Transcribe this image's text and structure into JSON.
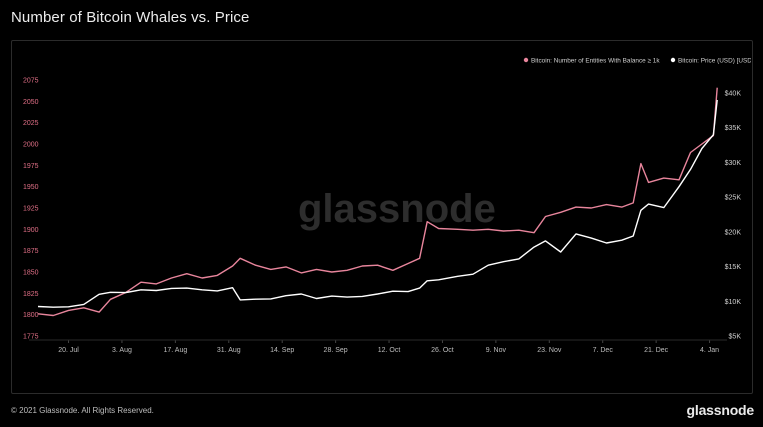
{
  "header": {
    "title": "Number of Bitcoin Whales vs. Price"
  },
  "footer": {
    "copyright": "© 2021 Glassnode. All Rights Reserved.",
    "brand": "glassnode"
  },
  "watermark": "glassnode",
  "colors": {
    "whales": "#e8859c",
    "price": "#ffffff",
    "left_axis": "#e06f86",
    "background": "#000000"
  },
  "chart_data": {
    "type": "line",
    "title": "Number of Bitcoin Whales vs. Price",
    "legend_position": "top-right",
    "x_ticks": [
      "20. Jul",
      "3. Aug",
      "17. Aug",
      "31. Aug",
      "14. Sep",
      "28. Sep",
      "12. Oct",
      "26. Oct",
      "9. Nov",
      "23. Nov",
      "7. Dec",
      "21. Dec",
      "4. Jan"
    ],
    "x_range": [
      "2020-07-12",
      "2021-01-07"
    ],
    "y_left": {
      "ticks": [
        "1775",
        "1800",
        "1825",
        "1850",
        "1875",
        "1900",
        "1925",
        "1950",
        "1975",
        "2000",
        "2025",
        "2050",
        "2075"
      ],
      "range": [
        1775,
        2075
      ]
    },
    "y_right": {
      "ticks": [
        "$5K",
        "$10K",
        "$15K",
        "$20K",
        "$25K",
        "$30K",
        "$35K",
        "$40K"
      ],
      "range": [
        5000,
        40000
      ]
    },
    "series": [
      {
        "name": "Bitcoin: Number of Entities With Balance ≥ 1k",
        "axis": "left",
        "points": [
          [
            "2020-07-12",
            1801
          ],
          [
            "2020-07-16",
            1799
          ],
          [
            "2020-07-20",
            1805
          ],
          [
            "2020-07-24",
            1808
          ],
          [
            "2020-07-28",
            1803
          ],
          [
            "2020-07-31",
            1818
          ],
          [
            "2020-08-04",
            1826
          ],
          [
            "2020-08-08",
            1838
          ],
          [
            "2020-08-12",
            1836
          ],
          [
            "2020-08-16",
            1843
          ],
          [
            "2020-08-20",
            1848
          ],
          [
            "2020-08-24",
            1843
          ],
          [
            "2020-08-28",
            1846
          ],
          [
            "2020-09-01",
            1857
          ],
          [
            "2020-09-03",
            1866
          ],
          [
            "2020-09-07",
            1858
          ],
          [
            "2020-09-11",
            1853
          ],
          [
            "2020-09-15",
            1856
          ],
          [
            "2020-09-19",
            1849
          ],
          [
            "2020-09-23",
            1853
          ],
          [
            "2020-09-27",
            1850
          ],
          [
            "2020-10-01",
            1852
          ],
          [
            "2020-10-05",
            1857
          ],
          [
            "2020-10-09",
            1858
          ],
          [
            "2020-10-13",
            1852
          ],
          [
            "2020-10-17",
            1860
          ],
          [
            "2020-10-20",
            1866
          ],
          [
            "2020-10-22",
            1909
          ],
          [
            "2020-10-25",
            1901
          ],
          [
            "2020-10-30",
            1900
          ],
          [
            "2020-11-03",
            1899
          ],
          [
            "2020-11-07",
            1900
          ],
          [
            "2020-11-11",
            1898
          ],
          [
            "2020-11-15",
            1899
          ],
          [
            "2020-11-19",
            1896
          ],
          [
            "2020-11-22",
            1915
          ],
          [
            "2020-11-26",
            1920
          ],
          [
            "2020-11-30",
            1926
          ],
          [
            "2020-12-04",
            1925
          ],
          [
            "2020-12-08",
            1929
          ],
          [
            "2020-12-12",
            1926
          ],
          [
            "2020-12-15",
            1931
          ],
          [
            "2020-12-17",
            1977
          ],
          [
            "2020-12-19",
            1955
          ],
          [
            "2020-12-23",
            1960
          ],
          [
            "2020-12-27",
            1958
          ],
          [
            "2020-12-30",
            1990
          ],
          [
            "2021-01-02",
            2000
          ],
          [
            "2021-01-05",
            2010
          ],
          [
            "2021-01-06",
            2066
          ]
        ]
      },
      {
        "name": "Bitcoin: Price (USD) [USD]",
        "axis": "right",
        "points": [
          [
            "2020-07-12",
            9250
          ],
          [
            "2020-07-16",
            9150
          ],
          [
            "2020-07-20",
            9200
          ],
          [
            "2020-07-24",
            9550
          ],
          [
            "2020-07-28",
            11000
          ],
          [
            "2020-07-31",
            11300
          ],
          [
            "2020-08-04",
            11250
          ],
          [
            "2020-08-08",
            11650
          ],
          [
            "2020-08-12",
            11550
          ],
          [
            "2020-08-16",
            11850
          ],
          [
            "2020-08-20",
            11900
          ],
          [
            "2020-08-24",
            11650
          ],
          [
            "2020-08-28",
            11500
          ],
          [
            "2020-09-01",
            11950
          ],
          [
            "2020-09-03",
            10200
          ],
          [
            "2020-09-07",
            10300
          ],
          [
            "2020-09-11",
            10350
          ],
          [
            "2020-09-15",
            10800
          ],
          [
            "2020-09-19",
            11050
          ],
          [
            "2020-09-23",
            10400
          ],
          [
            "2020-09-27",
            10750
          ],
          [
            "2020-10-01",
            10600
          ],
          [
            "2020-10-05",
            10700
          ],
          [
            "2020-10-09",
            11050
          ],
          [
            "2020-10-13",
            11450
          ],
          [
            "2020-10-17",
            11400
          ],
          [
            "2020-10-20",
            11900
          ],
          [
            "2020-10-22",
            12950
          ],
          [
            "2020-10-25",
            13100
          ],
          [
            "2020-10-30",
            13600
          ],
          [
            "2020-11-03",
            13900
          ],
          [
            "2020-11-07",
            15200
          ],
          [
            "2020-11-11",
            15700
          ],
          [
            "2020-11-15",
            16100
          ],
          [
            "2020-11-19",
            17800
          ],
          [
            "2020-11-22",
            18700
          ],
          [
            "2020-11-26",
            17100
          ],
          [
            "2020-11-30",
            19700
          ],
          [
            "2020-12-04",
            19100
          ],
          [
            "2020-12-08",
            18400
          ],
          [
            "2020-12-12",
            18800
          ],
          [
            "2020-12-15",
            19400
          ],
          [
            "2020-12-17",
            23100
          ],
          [
            "2020-12-19",
            24000
          ],
          [
            "2020-12-23",
            23500
          ],
          [
            "2020-12-27",
            26500
          ],
          [
            "2020-12-30",
            29000
          ],
          [
            "2021-01-02",
            32000
          ],
          [
            "2021-01-05",
            34000
          ],
          [
            "2021-01-06",
            39000
          ]
        ]
      }
    ]
  }
}
